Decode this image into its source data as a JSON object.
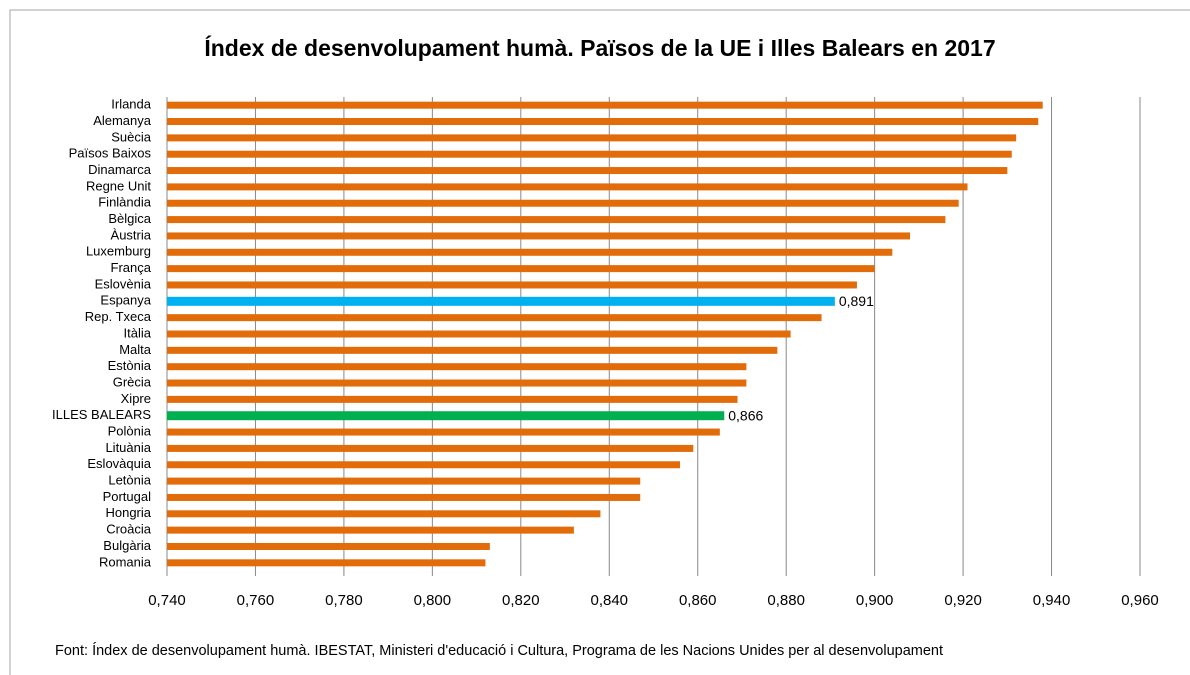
{
  "chart_data": {
    "type": "barh",
    "title": "Índex de desenvolupament humà. Països de la UE i Illes Balears en 2017",
    "source": "Font: Índex de desenvolupament humà.  IBESTAT,  Ministeri d'educació i Cultura, Programa de les Nacions Unides per al desenvolupament",
    "categories": [
      "Irlanda",
      "Alemanya",
      "Suècia",
      "Països Baixos",
      "Dinamarca",
      "Regne Unit",
      "Finlàndia",
      "Bèlgica",
      "Àustria",
      "Luxemburg",
      "França",
      "Eslovènia",
      "Espanya",
      "Rep. Txeca",
      "Itàlia",
      "Malta",
      "Estònia",
      "Grècia",
      "Xipre",
      "ILLES BALEARS",
      "Polònia",
      "Lituània",
      "Eslovàquia",
      "Letònia",
      "Portugal",
      "Hongria",
      "Croàcia",
      "Bulgària",
      "Romania"
    ],
    "values": [
      0.938,
      0.937,
      0.932,
      0.931,
      0.93,
      0.921,
      0.919,
      0.916,
      0.908,
      0.904,
      0.9,
      0.896,
      0.891,
      0.888,
      0.881,
      0.878,
      0.871,
      0.871,
      0.869,
      0.866,
      0.865,
      0.859,
      0.856,
      0.847,
      0.847,
      0.838,
      0.832,
      0.813,
      0.812
    ],
    "value_labels": [
      null,
      null,
      null,
      null,
      null,
      null,
      null,
      null,
      null,
      null,
      null,
      null,
      "0,891",
      null,
      null,
      null,
      null,
      null,
      null,
      "0,866",
      null,
      null,
      null,
      null,
      null,
      null,
      null,
      null,
      null
    ],
    "colors": [
      "#e36c0a",
      "#e36c0a",
      "#e36c0a",
      "#e36c0a",
      "#e36c0a",
      "#e36c0a",
      "#e36c0a",
      "#e36c0a",
      "#e36c0a",
      "#e36c0a",
      "#e36c0a",
      "#e36c0a",
      "#00b0f0",
      "#e36c0a",
      "#e36c0a",
      "#e36c0a",
      "#e36c0a",
      "#e36c0a",
      "#e36c0a",
      "#00b050",
      "#e36c0a",
      "#e36c0a",
      "#e36c0a",
      "#e36c0a",
      "#e36c0a",
      "#e36c0a",
      "#e36c0a",
      "#e36c0a",
      "#e36c0a"
    ],
    "xlim": [
      0.74,
      0.96
    ],
    "xticks": [
      {
        "value": 0.74,
        "label": "0,740"
      },
      {
        "value": 0.76,
        "label": "0,760"
      },
      {
        "value": 0.78,
        "label": "0,780"
      },
      {
        "value": 0.8,
        "label": "0,800"
      },
      {
        "value": 0.82,
        "label": "0,820"
      },
      {
        "value": 0.84,
        "label": "0,840"
      },
      {
        "value": 0.86,
        "label": "0,860"
      },
      {
        "value": 0.88,
        "label": "0,880"
      },
      {
        "value": 0.9,
        "label": "0,900"
      },
      {
        "value": 0.92,
        "label": "0,920"
      },
      {
        "value": 0.94,
        "label": "0,940"
      },
      {
        "value": 0.96,
        "label": "0,960"
      }
    ],
    "grid": true
  }
}
